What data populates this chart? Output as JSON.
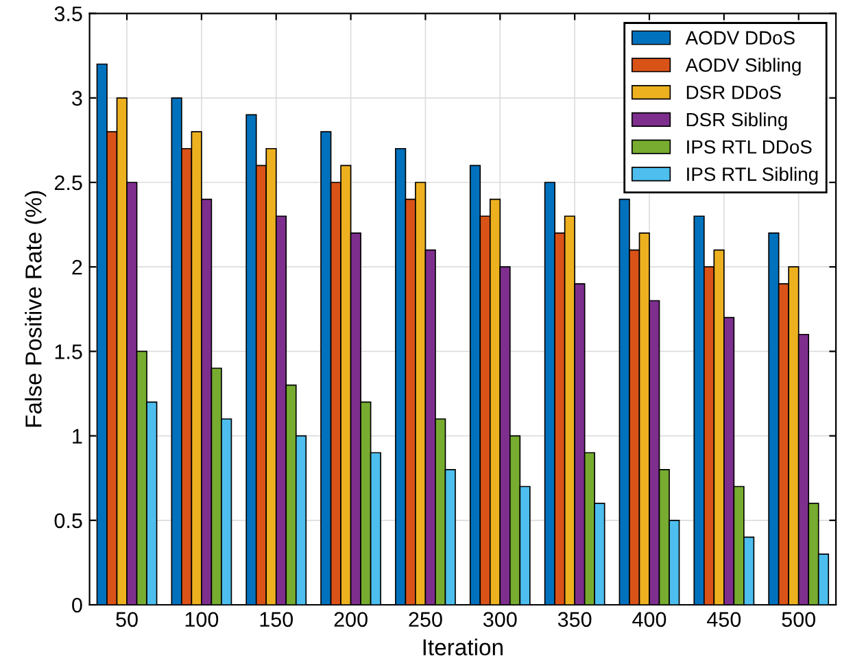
{
  "chart_data": {
    "type": "bar",
    "xlabel": "Iteration",
    "ylabel": "False Positive Rate (%)",
    "categories": [
      "50",
      "100",
      "150",
      "200",
      "250",
      "300",
      "350",
      "400",
      "450",
      "500"
    ],
    "series": [
      {
        "name": "AODV DDoS",
        "color": "#0072bd",
        "values": [
          3.2,
          3.0,
          2.9,
          2.8,
          2.7,
          2.6,
          2.5,
          2.4,
          2.3,
          2.2
        ]
      },
      {
        "name": "AODV Sibling",
        "color": "#d95319",
        "values": [
          2.8,
          2.7,
          2.6,
          2.5,
          2.4,
          2.3,
          2.2,
          2.1,
          2.0,
          1.9
        ]
      },
      {
        "name": "DSR DDoS",
        "color": "#edb120",
        "values": [
          3.0,
          2.8,
          2.7,
          2.6,
          2.5,
          2.4,
          2.3,
          2.2,
          2.1,
          2.0
        ]
      },
      {
        "name": "DSR Sibling",
        "color": "#7e2f8e",
        "values": [
          2.5,
          2.4,
          2.3,
          2.2,
          2.1,
          2.0,
          1.9,
          1.8,
          1.7,
          1.6
        ]
      },
      {
        "name": "IPS RTL DDoS",
        "color": "#77ac30",
        "values": [
          1.5,
          1.4,
          1.3,
          1.2,
          1.1,
          1.0,
          0.9,
          0.8,
          0.7,
          0.6
        ]
      },
      {
        "name": "IPS RTL Sibling",
        "color": "#4dbeee",
        "values": [
          1.2,
          1.1,
          1.0,
          0.9,
          0.8,
          0.7,
          0.6,
          0.5,
          0.4,
          0.3
        ]
      }
    ],
    "ylim": [
      0,
      3.5
    ],
    "yticks": [
      0,
      0.5,
      1,
      1.5,
      2,
      2.5,
      3,
      3.5
    ],
    "grid": true,
    "legend": "top right"
  }
}
